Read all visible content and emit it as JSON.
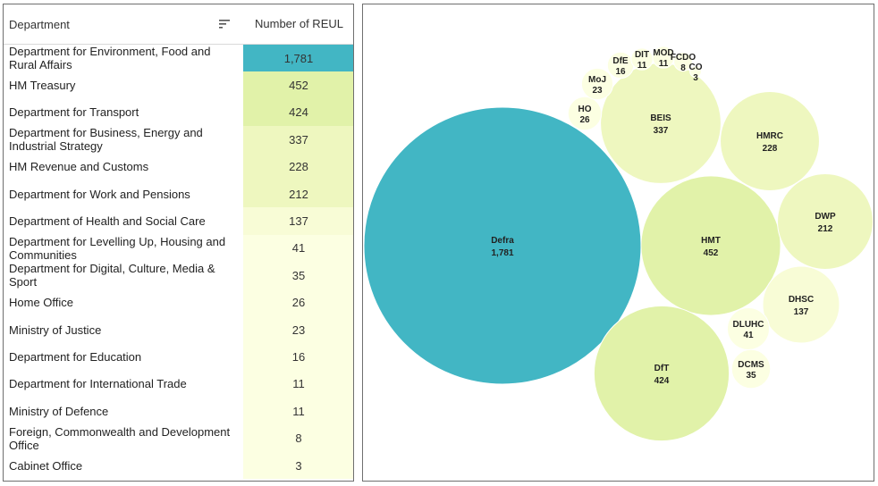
{
  "table": {
    "header_department": "Department",
    "header_number": "Number of REUL",
    "sort_icon": "sort-descending-icon"
  },
  "colors": {
    "max": "#42b6c4",
    "high": "#e1f2a9",
    "mid": "#eef7bf",
    "low": "#f8fcd6",
    "min": "#fcffe2"
  },
  "chart_data": {
    "type": "table",
    "rows": [
      {
        "department": "Department for Environment, Food and Rural Affairs",
        "abbr": "Defra",
        "value": 1781,
        "display": "1,781"
      },
      {
        "department": "HM Treasury",
        "abbr": "HMT",
        "value": 452,
        "display": "452"
      },
      {
        "department": "Department for Transport",
        "abbr": "DfT",
        "value": 424,
        "display": "424"
      },
      {
        "department": "Department for Business, Energy and Industrial Strategy",
        "abbr": "BEIS",
        "value": 337,
        "display": "337"
      },
      {
        "department": "HM Revenue and Customs",
        "abbr": "HMRC",
        "value": 228,
        "display": "228"
      },
      {
        "department": "Department for Work and Pensions",
        "abbr": "DWP",
        "value": 212,
        "display": "212"
      },
      {
        "department": "Department of Health and Social Care",
        "abbr": "DHSC",
        "value": 137,
        "display": "137"
      },
      {
        "department": "Department for Levelling Up, Housing and Communities",
        "abbr": "DLUHC",
        "value": 41,
        "display": "41"
      },
      {
        "department": "Department for Digital, Culture, Media & Sport",
        "abbr": "DCMS",
        "value": 35,
        "display": "35"
      },
      {
        "department": "Home Office",
        "abbr": "HO",
        "value": 26,
        "display": "26"
      },
      {
        "department": "Ministry of Justice",
        "abbr": "MoJ",
        "value": 23,
        "display": "23"
      },
      {
        "department": "Department for Education",
        "abbr": "DfE",
        "value": 16,
        "display": "16"
      },
      {
        "department": "Department for International Trade",
        "abbr": "DIT",
        "value": 11,
        "display": "11"
      },
      {
        "department": "Ministry of Defence",
        "abbr": "MOD",
        "value": 11,
        "display": "11"
      },
      {
        "department": "Foreign, Commonwealth and Development Office",
        "abbr": "FCDO",
        "value": 8,
        "display": "8"
      },
      {
        "department": "Cabinet Office",
        "abbr": "CO",
        "value": 3,
        "display": "3"
      }
    ]
  }
}
